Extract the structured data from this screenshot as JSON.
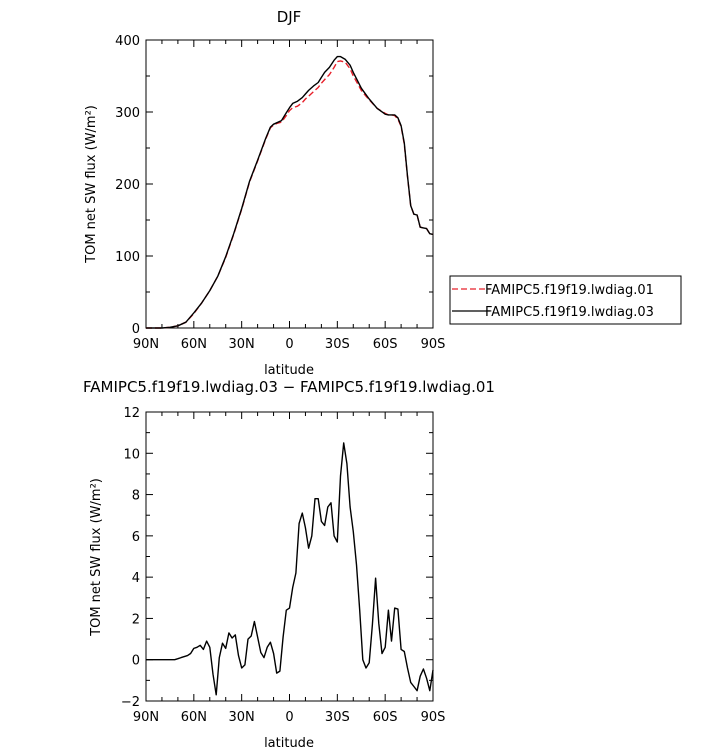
{
  "figure": {
    "title_top": "DJF",
    "title_bottom": "FAMIPC5.f19f19.lwdiag.03 − FAMIPC5.f19f19.lwdiag.01"
  },
  "chart_data": [
    {
      "type": "line",
      "title": "DJF",
      "xlabel": "latitude",
      "ylabel": "TOM net SW flux (W/m²)",
      "xlim": [
        90,
        -90
      ],
      "ylim": [
        0,
        400
      ],
      "xticks": [
        90,
        60,
        30,
        0,
        -30,
        -60,
        -90
      ],
      "xtick_labels": [
        "90N",
        "60N",
        "30N",
        "0",
        "30S",
        "60S",
        "90S"
      ],
      "yticks": [
        0,
        100,
        200,
        300,
        400
      ],
      "ytick_labels": [
        "0",
        "100",
        "200",
        "300",
        "400"
      ],
      "legend_position": "right",
      "series": [
        {
          "name": "FAMIPC5.f19f19.lwdiag.01",
          "color": "#e8202a",
          "dash": "dashed",
          "x": [
            90,
            85,
            80,
            75,
            70,
            65,
            60,
            55,
            50,
            45,
            40,
            35,
            30,
            25,
            20,
            15,
            12,
            10,
            8,
            5,
            2,
            0,
            -2,
            -5,
            -8,
            -10,
            -12,
            -15,
            -18,
            -20,
            -22,
            -25,
            -28,
            -30,
            -32,
            -35,
            -38,
            -40,
            -43,
            -45,
            -48,
            -50,
            -55,
            -60,
            -62,
            -64,
            -66,
            -68,
            -70,
            -72,
            -74,
            -76,
            -78,
            -80,
            -82,
            -84,
            -86,
            -88,
            -90
          ],
          "y": [
            0,
            0,
            0,
            1,
            3,
            8,
            20,
            35,
            52,
            72,
            98,
            130,
            165,
            203,
            232,
            262,
            278,
            282,
            284,
            286,
            295,
            302,
            306,
            308,
            313,
            318,
            322,
            328,
            334,
            340,
            345,
            352,
            362,
            370,
            371,
            369,
            360,
            350,
            338,
            330,
            322,
            317,
            305,
            298,
            296,
            296,
            295,
            290,
            280,
            255,
            210,
            170,
            158,
            157,
            140,
            139,
            138,
            131,
            130
          ]
        },
        {
          "name": "FAMIPC5.f19f19.lwdiag.03",
          "color": "#000000",
          "dash": "solid",
          "x": [
            90,
            85,
            80,
            75,
            70,
            65,
            60,
            55,
            50,
            45,
            40,
            35,
            30,
            25,
            20,
            15,
            12,
            10,
            8,
            5,
            2,
            0,
            -2,
            -5,
            -8,
            -10,
            -12,
            -15,
            -18,
            -20,
            -22,
            -25,
            -28,
            -30,
            -32,
            -35,
            -38,
            -40,
            -43,
            -45,
            -48,
            -50,
            -55,
            -60,
            -62,
            -64,
            -66,
            -68,
            -70,
            -72,
            -74,
            -76,
            -78,
            -80,
            -82,
            -84,
            -86,
            -88,
            -90
          ],
          "y": [
            0,
            0,
            0,
            1,
            3,
            8,
            21,
            35,
            52,
            72,
            99,
            131,
            166,
            204,
            233,
            263,
            279,
            283,
            285,
            288,
            299,
            306,
            312,
            315,
            320,
            325,
            330,
            336,
            341,
            348,
            355,
            362,
            372,
            377,
            377,
            373,
            365,
            355,
            342,
            333,
            324,
            318,
            305,
            297,
            296,
            296,
            296,
            292,
            281,
            257,
            211,
            170,
            158,
            157,
            140,
            139,
            138,
            131,
            130
          ]
        }
      ]
    },
    {
      "type": "line",
      "title": "FAMIPC5.f19f19.lwdiag.03 − FAMIPC5.f19f19.lwdiag.01",
      "xlabel": "latitude",
      "ylabel": "TOM net SW flux (W/m²)",
      "xlim": [
        90,
        -90
      ],
      "ylim": [
        -2,
        12
      ],
      "xticks": [
        90,
        60,
        30,
        0,
        -30,
        -60,
        -90
      ],
      "xtick_labels": [
        "90N",
        "60N",
        "30N",
        "0",
        "30S",
        "60S",
        "90S"
      ],
      "yticks": [
        -2,
        0,
        2,
        4,
        6,
        8,
        10,
        12
      ],
      "ytick_labels": [
        "−2",
        "0",
        "2",
        "4",
        "6",
        "8",
        "10",
        "12"
      ],
      "series": [
        {
          "color": "#000000",
          "dash": "solid",
          "x": [
            90,
            85,
            80,
            75,
            72,
            70,
            68,
            66,
            64,
            62,
            60,
            58,
            56,
            54,
            52,
            50,
            48,
            46,
            44,
            42,
            40,
            38,
            36,
            34,
            32,
            30,
            28,
            26,
            24,
            22,
            20,
            18,
            16,
            14,
            12,
            10,
            8,
            6,
            4,
            2,
            0,
            -2,
            -4,
            -6,
            -8,
            -10,
            -12,
            -14,
            -16,
            -18,
            -20,
            -22,
            -24,
            -26,
            -28,
            -30,
            -32,
            -34,
            -36,
            -38,
            -40,
            -42,
            -44,
            -46,
            -48,
            -50,
            -52,
            -54,
            -56,
            -58,
            -60,
            -62,
            -64,
            -66,
            -68,
            -70,
            -72,
            -74,
            -76,
            -78,
            -80,
            -82,
            -84,
            -86,
            -88,
            -90
          ],
          "y": [
            0,
            0,
            0,
            0,
            0,
            0.05,
            0.1,
            0.15,
            0.2,
            0.3,
            0.55,
            0.6,
            0.7,
            0.5,
            0.9,
            0.6,
            -0.7,
            -1.7,
            0.1,
            0.8,
            0.55,
            1.3,
            1.05,
            1.2,
            0.2,
            -0.4,
            -0.25,
            1.0,
            1.15,
            1.85,
            1.1,
            0.35,
            0.1,
            0.6,
            0.85,
            0.3,
            -0.65,
            -0.55,
            1.1,
            2.4,
            2.5,
            3.5,
            4.2,
            6.6,
            7.1,
            6.4,
            5.4,
            6.0,
            7.8,
            7.8,
            6.7,
            6.5,
            7.4,
            7.6,
            6.0,
            5.7,
            8.9,
            10.5,
            9.5,
            7.4,
            6.2,
            4.6,
            2.4,
            0.0,
            -0.4,
            -0.15,
            1.7,
            3.95,
            1.75,
            0.3,
            0.6,
            2.4,
            0.9,
            2.5,
            2.45,
            0.5,
            0.4,
            -0.4,
            -1.1,
            -1.3,
            -1.5,
            -0.8,
            -0.45,
            -0.9,
            -1.5,
            -0.5
          ]
        }
      ]
    }
  ]
}
